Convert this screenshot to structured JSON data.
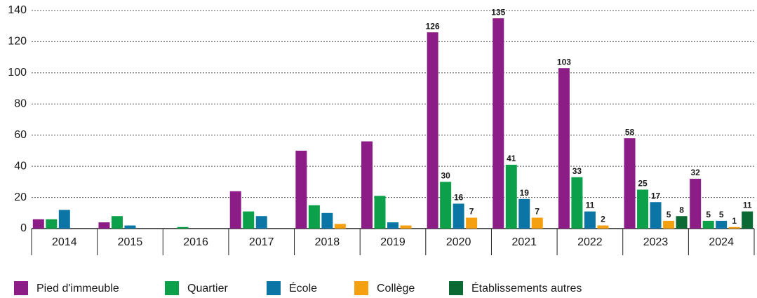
{
  "chart_data": {
    "type": "bar",
    "categories": [
      "2014",
      "2015",
      "2016",
      "2017",
      "2018",
      "2019",
      "2020",
      "2021",
      "2022",
      "2023",
      "2024"
    ],
    "series": [
      {
        "name": "Pied d'immeuble",
        "color": "#8c1d87",
        "values": [
          6,
          4,
          0,
          24,
          50,
          56,
          126,
          135,
          103,
          58,
          32
        ],
        "value_labels": [
          null,
          null,
          null,
          null,
          null,
          null,
          "126",
          "135",
          "103",
          "58",
          "32"
        ]
      },
      {
        "name": "Quartier",
        "color": "#0ca04b",
        "values": [
          6,
          8,
          1,
          11,
          15,
          21,
          30,
          41,
          33,
          25,
          5
        ],
        "value_labels": [
          null,
          null,
          null,
          null,
          null,
          null,
          "30",
          "41",
          "33",
          "25",
          "5"
        ]
      },
      {
        "name": "École",
        "color": "#0b76a6",
        "values": [
          12,
          2,
          0,
          8,
          10,
          4,
          16,
          19,
          11,
          17,
          5
        ],
        "value_labels": [
          null,
          null,
          null,
          null,
          null,
          null,
          "16",
          "19",
          "11",
          "17",
          "5"
        ]
      },
      {
        "name": "Collège",
        "color": "#f5a011",
        "values": [
          0,
          0,
          0,
          0,
          3,
          2,
          7,
          7,
          2,
          5,
          1
        ],
        "value_labels": [
          null,
          null,
          null,
          null,
          null,
          null,
          "7",
          "7",
          "2",
          "5",
          "1"
        ]
      },
      {
        "name": "Établissements autres",
        "color": "#0b6933",
        "values": [
          0,
          0,
          0,
          0,
          0,
          0,
          0,
          0,
          0,
          8,
          11
        ],
        "value_labels": [
          null,
          null,
          null,
          null,
          null,
          null,
          null,
          null,
          null,
          "8",
          "11"
        ]
      }
    ],
    "ylim": [
      0,
      140
    ],
    "yticks": [
      0,
      20,
      40,
      60,
      80,
      100,
      120,
      140
    ],
    "grid": true,
    "legend": "bottom"
  }
}
